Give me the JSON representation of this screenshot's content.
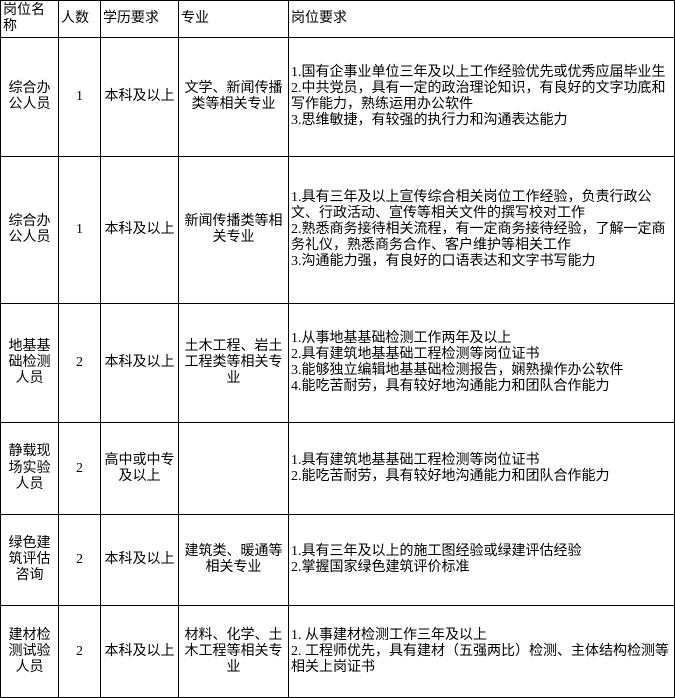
{
  "table": {
    "border_color": "#000000",
    "background_color": "#ffffff",
    "text_color": "#000000",
    "font_size": 14,
    "columns": [
      "岗位名称",
      "人数",
      "学历要求",
      "专业",
      "岗位要求"
    ],
    "rows": [
      {
        "position": "综合办公人员",
        "count": "1",
        "education": "本科及以上",
        "major": "文学、新闻传播类等相关专业",
        "requirements": "1.国有企事业单位三年及以上工作经验优先或优秀应届毕业生\n2.中共党员，具有一定的政治理论知识，有良好的文字功底和写作能力，熟练运用办公软件\n3.思维敏捷，有较强的执行力和沟通表达能力"
      },
      {
        "position": "综合办公人员",
        "count": "1",
        "education": "本科及以上",
        "major": "新闻传播类等相关专业",
        "requirements": "1.具有三年及以上宣传综合相关岗位工作经验，负责行政公文、行政活动、宣传等相关文件的撰写校对工作\n2.熟悉商务接待相关流程，有一定商务接待经验，了解一定商务礼仪，熟悉商务合作、客户维护等相关工作\n3.沟通能力强，有良好的口语表达和文字书写能力"
      },
      {
        "position": "地基基础检测人员",
        "count": "2",
        "education": "本科及以上",
        "major": "土木工程、岩土工程类等相关专业",
        "requirements": "1.从事地基基础检测工作两年及以上\n2.具有建筑地基基础工程检测等岗位证书\n3.能够独立编辑地基基础检测报告，娴熟操作办公软件\n4.能吃苦耐劳，具有较好地沟通能力和团队合作能力"
      },
      {
        "position": "静载现场实验人员",
        "count": "2",
        "education": "高中或中专及以上",
        "major": "",
        "requirements": "1.具有建筑地基基础工程检测等岗位证书\n2.能吃苦耐劳，具有较好地沟通能力和团队合作能力"
      },
      {
        "position": "绿色建筑评估咨询",
        "count": "2",
        "education": "本科及以上",
        "major": "建筑类、暖通等相关专业",
        "requirements": "1.具有三年及以上的施工图经验或绿建评估经验\n2.掌握国家绿色建筑评价标准"
      },
      {
        "position": "建材检测试验人员",
        "count": "2",
        "education": "本科及以上",
        "major": "材料、化学、土木工程等相关专业",
        "requirements": "1. 从事建材检测工作三年及以上\n2. 工程师优先，具有建材（五强两比）检测、主体结构检测等相关上岗证书"
      }
    ]
  }
}
